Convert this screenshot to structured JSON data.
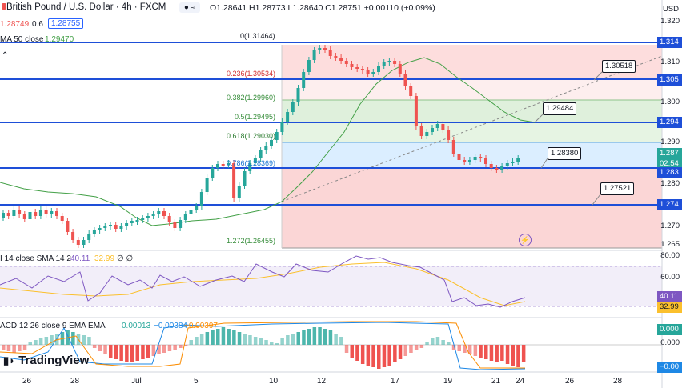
{
  "header": {
    "symbol_title": "British Pound / U.S. Dollar · 4h · FXCM",
    "ohlc": "O1.28641  H1.28773  L1.28640  C1.28751  +0.00110 (+0.09%)",
    "bid_price": "1.28749",
    "spread": "0.6",
    "ask_price": "1.28755",
    "currency": "USD"
  },
  "indicators": {
    "sma_label": "MA 50 close",
    "sma_value": "1.29470",
    "rsi_label": "I 14 close SMA 14 2",
    "rsi_value": "40.11",
    "rsi_sma_value": "32.99",
    "rsi_extra": "∅ ∅",
    "macd_label": "ACD 12 26 close 9 EMA EMA",
    "macd_hist": "0.00013",
    "macd_line": "−0.00384",
    "macd_signal": "−0.00397"
  },
  "fib_levels": [
    {
      "ratio": "0(1.31464)",
      "color": "#131722"
    },
    {
      "ratio": "0.236(1.30534)",
      "color": "#d32f2f"
    },
    {
      "ratio": "0.382(1.29960)",
      "color": "#388e3c"
    },
    {
      "ratio": "0.5(1.29495)",
      "color": "#388e3c"
    },
    {
      "ratio": "0.618(1.29030)",
      "color": "#2e7d32"
    },
    {
      "ratio": "0.786(1.28369)",
      "color": "#1976d2"
    },
    {
      "ratio": "1.272(1.26455)",
      "color": "#388e3c"
    }
  ],
  "level_callouts": [
    "1.30518",
    "1.29484",
    "1.28380",
    "1.27521"
  ],
  "price_axis": {
    "ticks": [
      "1.320",
      "1.310",
      "1.300",
      "1.290",
      "1.280",
      "1.270",
      "1.265"
    ],
    "tags": [
      "1.314",
      "1.305",
      "1.294",
      "1.287",
      "02:54",
      "1.283",
      "1.274"
    ]
  },
  "rsi_axis": [
    "80.00",
    "60.00",
    "40.11",
    "32.99"
  ],
  "macd_axis": [
    "0.000",
    "0.000",
    "−0.00"
  ],
  "dates": [
    "26",
    "28",
    "Jul",
    "5",
    "10",
    "12",
    "17",
    "19",
    "21",
    "24",
    "26",
    "28"
  ],
  "brand": "TradingView",
  "colors": {
    "level_line": "#1e4fd8",
    "bull": "#26a69a",
    "bear": "#ef5350",
    "sma": "#43a047",
    "rsi": "#7e57c2",
    "rsi_sma": "#fbc02d"
  }
}
